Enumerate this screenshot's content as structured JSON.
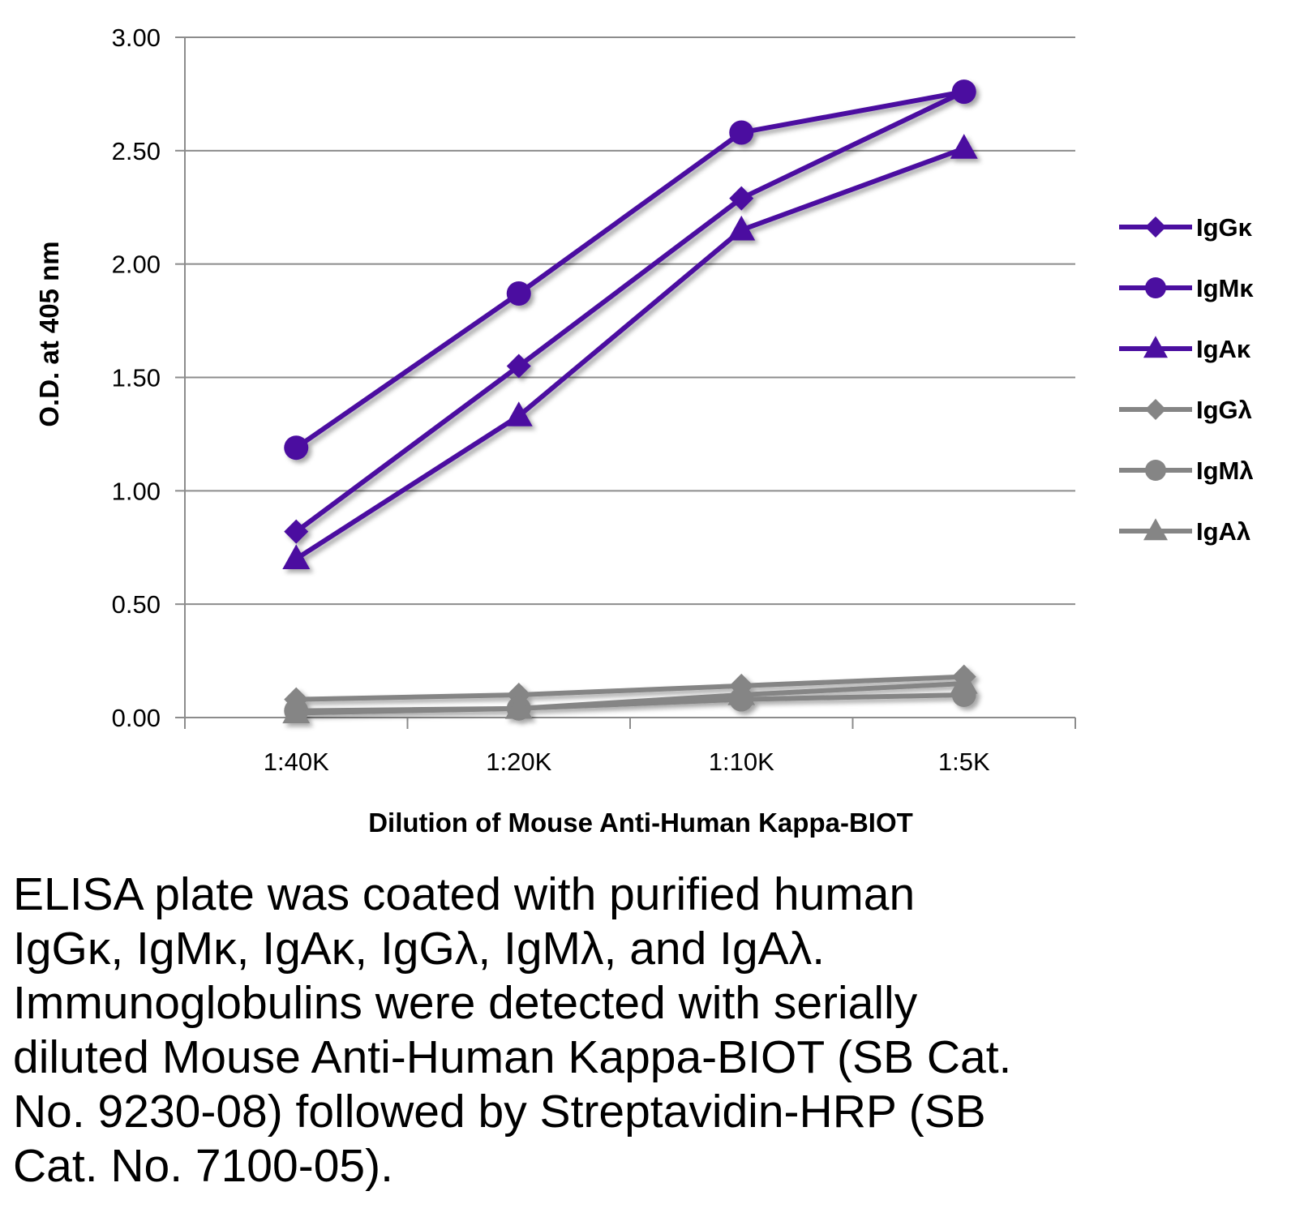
{
  "chart_data": {
    "type": "line",
    "title": "",
    "xlabel": "Dilution of Mouse Anti-Human Kappa-BIOT",
    "ylabel": "O.D. at 405 nm",
    "categories": [
      "1:40K",
      "1:20K",
      "1:10K",
      "1:5K"
    ],
    "ylim": [
      0,
      3
    ],
    "yticks": [
      "0.00",
      "0.50",
      "1.00",
      "1.50",
      "2.00",
      "2.50",
      "3.00"
    ],
    "grid": true,
    "legend_position": "right",
    "series": [
      {
        "name": "IgGκ",
        "marker": "diamond",
        "color": "#4B0FA0",
        "values": [
          0.82,
          1.55,
          2.29,
          2.76
        ]
      },
      {
        "name": "IgMκ",
        "marker": "circle",
        "color": "#4B0FA0",
        "values": [
          1.19,
          1.87,
          2.58,
          2.76
        ]
      },
      {
        "name": "IgAκ",
        "marker": "triangle",
        "color": "#4B0FA0",
        "values": [
          0.7,
          1.33,
          2.15,
          2.51
        ]
      },
      {
        "name": "IgGλ",
        "marker": "diamond",
        "color": "#858585",
        "values": [
          0.08,
          0.1,
          0.14,
          0.18
        ]
      },
      {
        "name": "IgMλ",
        "marker": "circle",
        "color": "#858585",
        "values": [
          0.03,
          0.04,
          0.08,
          0.1
        ]
      },
      {
        "name": "IgAλ",
        "marker": "triangle",
        "color": "#858585",
        "values": [
          0.02,
          0.04,
          0.1,
          0.15
        ]
      }
    ]
  },
  "caption": "ELISA plate was coated with purified human\nIgGκ, IgMκ, IgAκ, IgGλ, IgMλ, and IgAλ.\nImmunoglobulins were detected with serially\ndiluted Mouse Anti-Human Kappa-BIOT (SB Cat.\nNo. 9230-08) followed by Streptavidin-HRP (SB\nCat. No. 7100-05)."
}
